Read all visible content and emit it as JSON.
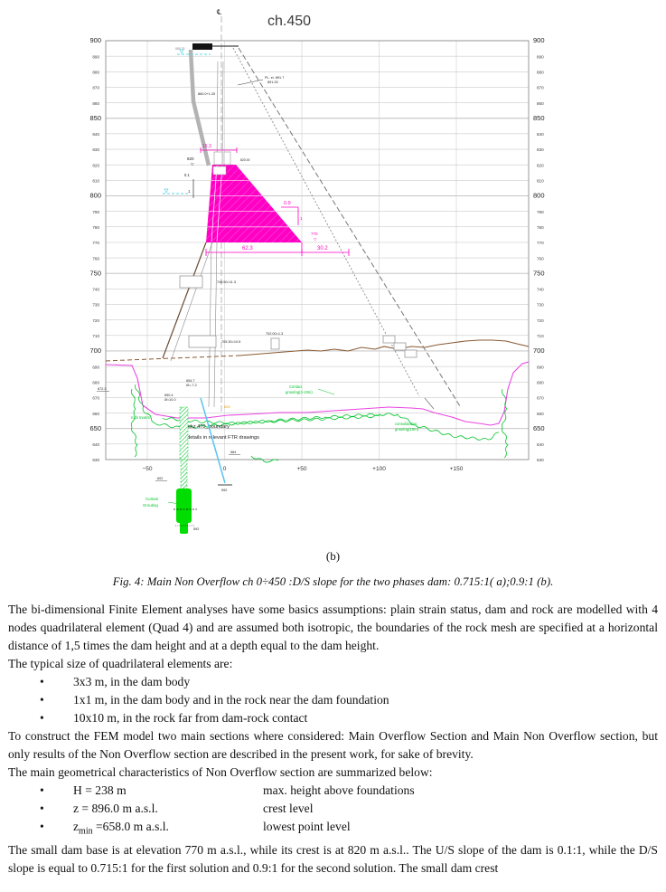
{
  "figure": {
    "title": "ch.450",
    "centerline_symbol": "℄",
    "sub_label": "(b)",
    "elevations": [
      "900",
      "890",
      "880",
      "870",
      "860",
      "850",
      "840",
      "830",
      "820",
      "810",
      "800",
      "790",
      "780",
      "770",
      "760",
      "750",
      "740",
      "730",
      "720",
      "710",
      "700",
      "690",
      "680",
      "670",
      "660",
      "650",
      "640",
      "630"
    ],
    "x_ticks": [
      "−50",
      "0",
      "+50",
      "+100",
      "+150"
    ],
    "dims": {
      "top_width": "15.3",
      "base_width": "62.3",
      "ds_extension": "30.2",
      "us_slope": "0.1",
      "us_slope_run": "1",
      "ds_slope": "0.9",
      "ds_slope_run": "1",
      "crest_level": "820",
      "base_level": "770",
      "level_marker": "▽"
    },
    "annotations": {
      "crest_note_1": "PL. el. 891.7",
      "crest_note_2": "891.25",
      "water_level": "888.25",
      "us_note": "860.0+1.25",
      "crest_detail": "820.00",
      "gallery_740": "746.50=11.3",
      "gallery_705": "705.30=10.5",
      "gallery_702": "702.00=1.3",
      "rock_pt_1": "654.7",
      "rock_pt_1b": "Ø=-7.2",
      "rock_pt_2": "650.4",
      "rock_pt_2b": "Ø=10.0",
      "rock_pt_3": "672.3",
      "curtain_top": "602",
      "curtain_bottom": "592",
      "drain_bottom": "592",
      "axis_note": "584",
      "orange_note": "690",
      "boundary_note_1": "wkz 470_boundary",
      "boundary_note_2": "details in relevant FTR drawings"
    },
    "green_labels": {
      "contact_1": "Contact",
      "contact_2": "grouting(3-10m)",
      "consolidation_1": "consolidation",
      "consolidation_2": "grouting(10m)",
      "rock_treatment": "rock treatm.",
      "curtain_1": "Curtain",
      "curtain_2": "Grouting"
    }
  },
  "caption": "Fig. 4: Main Non Overflow ch 0÷450 :D/S slope for the two phases dam: 0.715:1( a);0.9:1 (b).",
  "text": {
    "p1": "The bi-dimensional Finite Element analyses have some basics assumptions: plain strain status, dam and rock are modelled with 4 nodes quadrilateral element (Quad 4) and are assumed both isotropic, the boundaries of the rock mesh are specified at a horizontal distance of 1,5 times the dam height and at a depth equal to the dam height.",
    "p2": "The typical size of quadrilateral elements are:",
    "element_sizes": [
      "3x3 m,  in the dam body",
      "1x1 m,  in the dam body and in the rock near the dam foundation",
      "10x10 m, in the rock far from dam-rock contact"
    ],
    "p3": "To construct the FEM model two main sections where considered: Main Overflow Section and Main Non Overflow section, but only results of the Non Overflow section are described in the present work, for sake of brevity.",
    "p4": "The main geometrical characteristics of  Non Overflow section are summarized below:",
    "geo": [
      {
        "formula": "H = 238 m",
        "desc": "max. height above foundations"
      },
      {
        "formula": "z = 896.0 m a.s.l.",
        "desc": "crest level"
      },
      {
        "formula_pre": "z",
        "formula_sub": "min",
        "formula_post": " =658.0 m a.s.l.",
        "desc": "lowest point level"
      }
    ],
    "p5": "The small dam base is at elevation 770 m a.s.l., while its crest is at 820 m a.s.l.. The U/S slope of the dam is 0.1:1, while the D/S slope is equal to 0.715:1 for the first solution and  0.9:1 for the second solution. The small dam crest"
  },
  "colors": {
    "dam_fill": "#ff00c4",
    "rock_line": "#e946e2",
    "ground_line": "#8a5a33",
    "grout_green": "#00c32a",
    "grout_bright": "#00dd00",
    "water_cyan": "#62d4e8",
    "drain_blue": "#58c4f0"
  }
}
